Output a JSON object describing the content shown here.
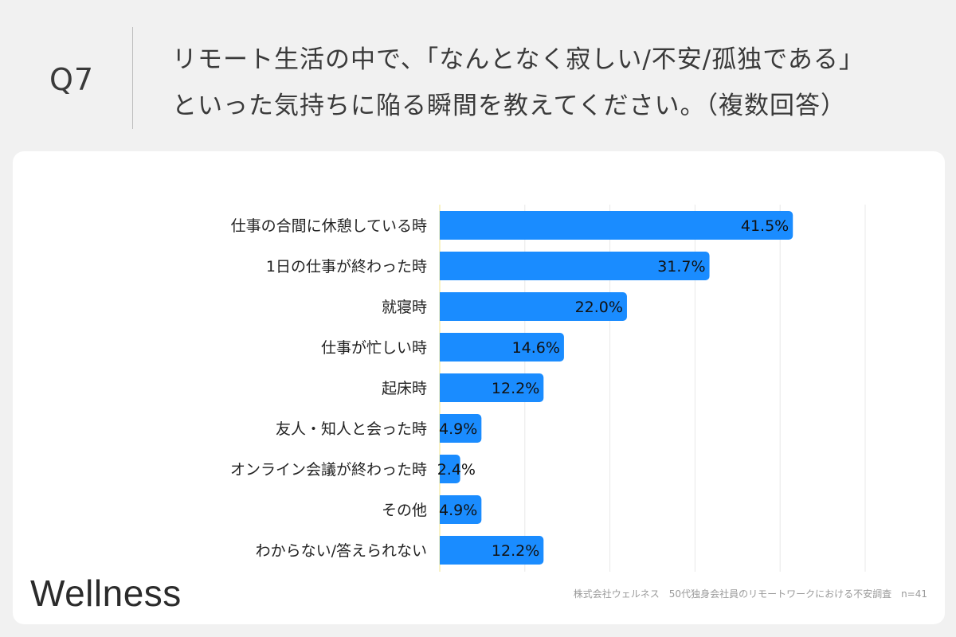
{
  "question": {
    "number": "Q7",
    "line1": "リモート生活の中で、「なんとなく寂しい/不安/孤独である」",
    "line2": "といった気持ちに陥る瞬間を教えてください。（複数回答）"
  },
  "footer": {
    "logo": "Wellness",
    "note": "株式会社ウェルネス　50代独身会社員のリモートワークにおける不安調査　n=41"
  },
  "colors": {
    "bar": "#1a8cff",
    "grid": "#e8e8e8",
    "axis": "#f0e68c"
  },
  "chart_data": {
    "type": "bar",
    "orientation": "horizontal",
    "categories": [
      "仕事の合間に休憩している時",
      "1日の仕事が終わった時",
      "就寝時",
      "仕事が忙しい時",
      "起床時",
      "友人・知人と会った時",
      "オンライン会議が終わった時",
      "その他",
      "わからない/答えられない"
    ],
    "values": [
      41.5,
      31.7,
      22.0,
      14.6,
      12.2,
      4.9,
      2.4,
      4.9,
      12.2
    ],
    "labels": [
      "41.5%",
      "31.7%",
      "22.0%",
      "14.6%",
      "12.2%",
      "4.9%",
      "2.4%",
      "4.9%",
      "12.2%"
    ],
    "xlim": [
      0,
      50
    ],
    "grid": true
  }
}
